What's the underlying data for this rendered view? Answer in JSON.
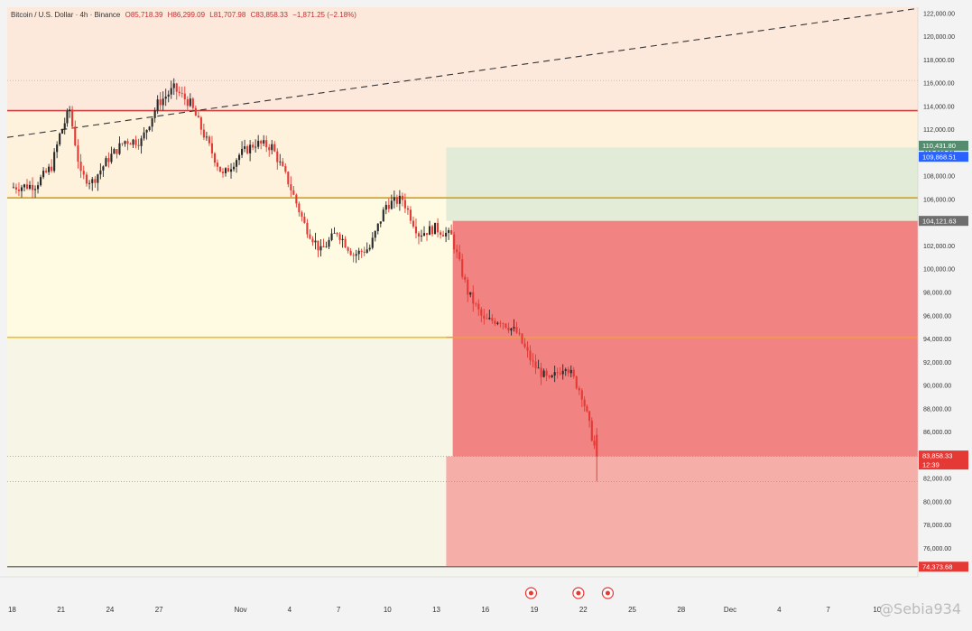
{
  "header": {
    "symbol": "Bitcoin / U.S. Dollar · 4h · Binance",
    "open": "O85,718.39",
    "high": "H86,299.09",
    "low": "L81,707.98",
    "close": "C83,858.33",
    "change": "−1,871.25 (−2.18%)"
  },
  "watermark": "@Sebia934",
  "price_tags": {
    "upper_target": "110,431.80",
    "upper_target2": "109,868.51",
    "entry": "104,121.63",
    "current": "83,858.33",
    "countdown": "12:39",
    "lower": "74,373.68"
  },
  "colors": {
    "up_candle": "#26282a",
    "down_candle": "#e53935",
    "red_level": "#c94040",
    "gold_level": "#d4a017",
    "yellow_level": "#f0c020",
    "orange_level": "#f0a030",
    "profit_zone": "#dfead6",
    "loss_zone": "#f07a7a",
    "loss_lower": "#f4a7a3",
    "blue_tag": "#2962ff",
    "grey_tag": "#6e6e6e",
    "red_tag": "#e53935"
  },
  "chart_data": {
    "type": "candlestick",
    "symbol": "Bitcoin / U.S. Dollar",
    "interval": "4h",
    "exchange": "Binance",
    "y_axis": {
      "range": [
        73500,
        122500
      ],
      "ticks": [
        122000,
        120000,
        118000,
        116000,
        114000,
        112000,
        110000,
        108000,
        106000,
        104000,
        102000,
        100000,
        98000,
        96000,
        94000,
        92000,
        90000,
        88000,
        86000,
        84000,
        82000,
        80000,
        78000,
        76000
      ],
      "tick_labels": [
        "122,000.00",
        "120,000.00",
        "118,000.00",
        "116,000.00",
        "114,000.00",
        "112,000.00",
        "110,000.00",
        "108,000.00",
        "106,000.00",
        "104,000.00",
        "102,000.00",
        "100,000.00",
        "98,000.00",
        "96,000.00",
        "94,000.00",
        "92,000.00",
        "90,000.00",
        "88,000.00",
        "86,000.00",
        "84,000.00",
        "82,000.00",
        "80,000.00",
        "78,000.00",
        "76,000.00"
      ]
    },
    "x_axis": {
      "tick_labels": [
        "18",
        "21",
        "24",
        "27",
        "Nov",
        "4",
        "7",
        "10",
        "13",
        "16",
        "19",
        "22",
        "25",
        "28",
        "Dec",
        "4",
        "7",
        "10"
      ],
      "tick_days": [
        0,
        3,
        6,
        9,
        14,
        17,
        20,
        23,
        26,
        29,
        32,
        35,
        38,
        41,
        44,
        47,
        50,
        53
      ],
      "day_range": [
        -0.3,
        55.5
      ]
    },
    "levels": [
      {
        "name": "resistance-red",
        "price": 113600
      },
      {
        "name": "gold-level",
        "price": 106100
      },
      {
        "name": "yellow-level",
        "price": 94100
      },
      {
        "name": "high-dotted",
        "price": 116200
      },
      {
        "name": "current-dotted",
        "price": 83858.33
      },
      {
        "name": "low-dotted",
        "price": 81700
      },
      {
        "name": "bottom-level",
        "price": 74373.68
      }
    ],
    "trendline": {
      "start": {
        "day": -0.3,
        "price": 111300
      },
      "end": {
        "day": 55.5,
        "price": 122400
      }
    },
    "zones": [
      {
        "name": "profit-zone",
        "from_day": 26.6,
        "to_day": 55.5,
        "top": 110431.8,
        "bottom": 104121.63
      },
      {
        "name": "loss-zone",
        "from_day": 27.0,
        "to_day": 55.5,
        "top": 104121.63,
        "bottom": 83858.33
      },
      {
        "name": "loss-zone-lower",
        "from_day": 26.6,
        "to_day": 55.5,
        "top": 83858.33,
        "bottom": 74373.68
      }
    ],
    "anchors": [
      {
        "day": 0.0,
        "price": 107000
      },
      {
        "day": 1.5,
        "price": 107200
      },
      {
        "day": 2.5,
        "price": 108800
      },
      {
        "day": 3.0,
        "price": 111500
      },
      {
        "day": 3.6,
        "price": 113700
      },
      {
        "day": 4.3,
        "price": 108000
      },
      {
        "day": 5.0,
        "price": 107500
      },
      {
        "day": 6.0,
        "price": 109500
      },
      {
        "day": 7.0,
        "price": 111000
      },
      {
        "day": 8.0,
        "price": 111000
      },
      {
        "day": 9.0,
        "price": 114200
      },
      {
        "day": 10.0,
        "price": 115500
      },
      {
        "day": 11.0,
        "price": 114200
      },
      {
        "day": 12.0,
        "price": 111000
      },
      {
        "day": 13.0,
        "price": 108000
      },
      {
        "day": 14.0,
        "price": 109800
      },
      {
        "day": 15.0,
        "price": 110800
      },
      {
        "day": 16.0,
        "price": 110500
      },
      {
        "day": 17.0,
        "price": 107500
      },
      {
        "day": 18.0,
        "price": 103800
      },
      {
        "day": 19.0,
        "price": 101500
      },
      {
        "day": 20.0,
        "price": 103200
      },
      {
        "day": 21.0,
        "price": 101200
      },
      {
        "day": 22.0,
        "price": 101800
      },
      {
        "day": 23.0,
        "price": 105500
      },
      {
        "day": 24.0,
        "price": 106000
      },
      {
        "day": 25.0,
        "price": 103000
      },
      {
        "day": 26.0,
        "price": 103500
      },
      {
        "day": 27.0,
        "price": 102800
      },
      {
        "day": 28.0,
        "price": 98000
      },
      {
        "day": 29.0,
        "price": 95500
      },
      {
        "day": 30.0,
        "price": 95600
      },
      {
        "day": 31.0,
        "price": 94500
      },
      {
        "day": 32.0,
        "price": 91800
      },
      {
        "day": 33.0,
        "price": 90300
      },
      {
        "day": 34.0,
        "price": 91800
      },
      {
        "day": 35.0,
        "price": 89200
      },
      {
        "day": 35.6,
        "price": 85600
      },
      {
        "day": 35.9,
        "price": 83858
      }
    ],
    "last_candle": {
      "open": 85718.39,
      "high": 86299.09,
      "low": 81707.98,
      "close": 83858.33,
      "change": -1871.25,
      "change_pct": -2.18
    }
  }
}
